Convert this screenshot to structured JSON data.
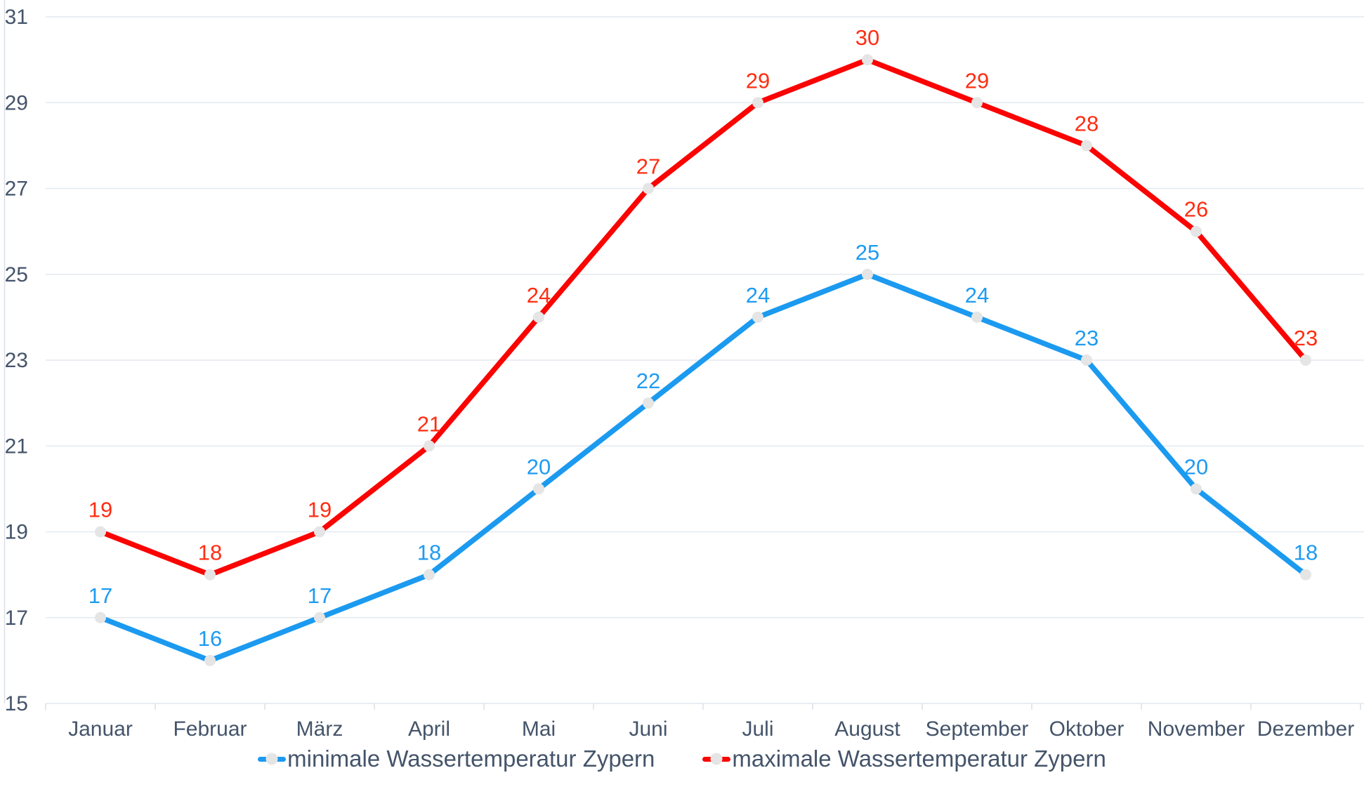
{
  "legend": {
    "items": [
      {
        "label": "minimale Wassertemperatur Zypern",
        "series": 0
      },
      {
        "label": "maximale Wassertemperatur Zypern",
        "series": 1
      }
    ],
    "text_color": "#44546A",
    "marker_dot_color": "#E5E5E5"
  },
  "chart_data": {
    "type": "line",
    "categories": [
      "Januar",
      "Februar",
      "März",
      "April",
      "Mai",
      "Juni",
      "Juli",
      "August",
      "September",
      "Oktober",
      "November",
      "Dezember"
    ],
    "series": [
      {
        "name": "minimale Wassertemperatur Zypern",
        "values": [
          17,
          16,
          17,
          18,
          20,
          22,
          24,
          25,
          24,
          23,
          20,
          18
        ],
        "line_color": "#1B9AF0",
        "label_color": "#1E9BF1"
      },
      {
        "name": "maximale Wassertemperatur Zypern",
        "values": [
          19,
          18,
          19,
          21,
          24,
          27,
          29,
          30,
          29,
          28,
          26,
          23
        ],
        "line_color": "#FB0300",
        "label_color": "#FF2D12"
      }
    ],
    "title": "",
    "xlabel": "",
    "ylabel": "",
    "ylim": [
      15,
      31
    ],
    "yticks": [
      15,
      17,
      19,
      21,
      23,
      25,
      27,
      29,
      31
    ],
    "grid": true,
    "legend_position": "bottom",
    "data_labels": true,
    "markers": "circle",
    "marker_color": "#E5E5E5",
    "axis_text_color": "#44546A",
    "gridline_color": "#E4E9EF",
    "axis_line_color": "#D8DEE6"
  }
}
